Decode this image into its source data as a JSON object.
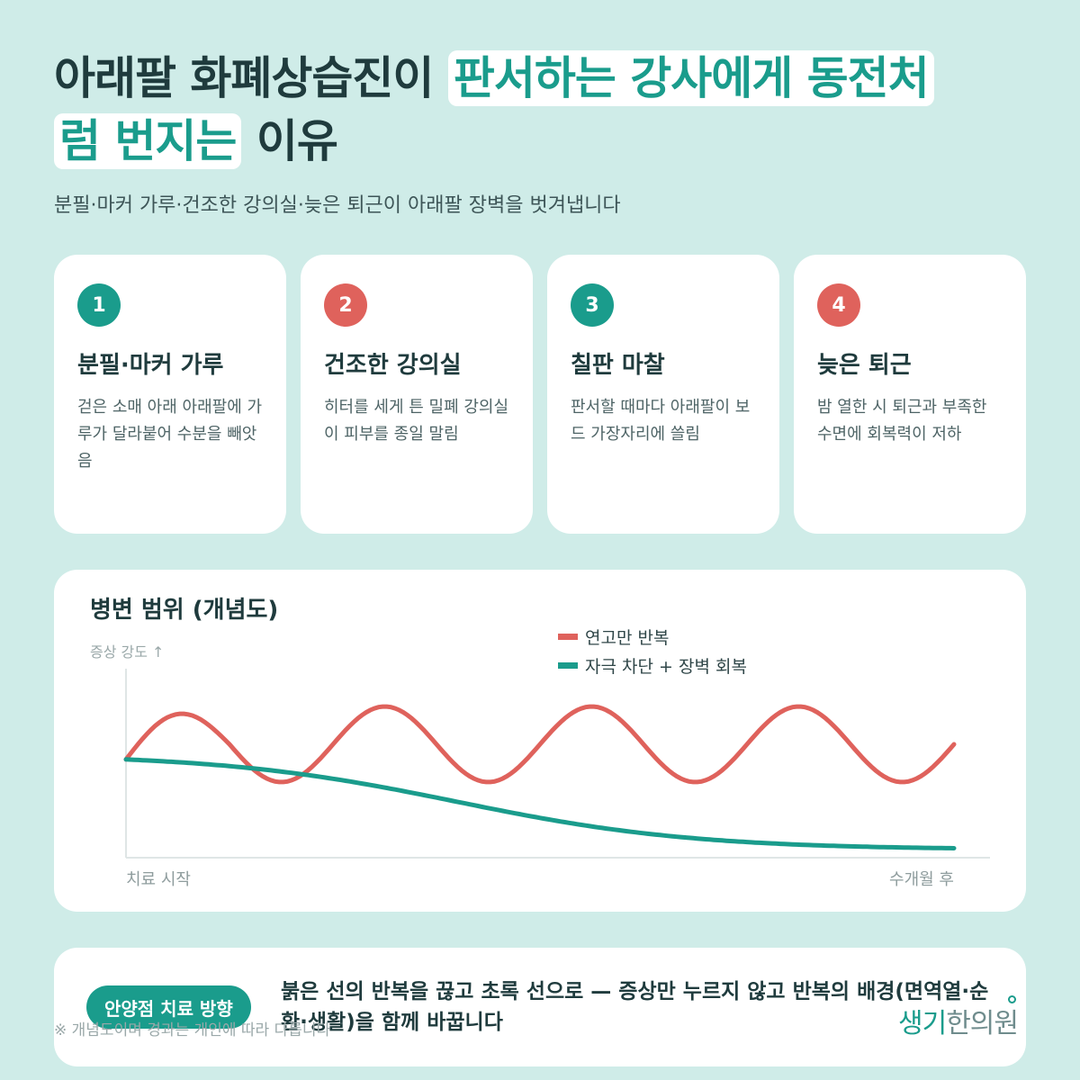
{
  "header": {
    "title_part1": "아래팔 화폐상습진이 ",
    "title_highlight1": "판서하는 강사에게 동전처",
    "title_highlight2": "럼 번지는",
    "title_part2": " 이유",
    "subtitle": "분필·마커 가루·건조한 강의실·늦은 퇴근이 아래팔 장벽을 벗겨냅니다"
  },
  "cards": [
    {
      "num": "1",
      "title": "분필·마커 가루",
      "desc": "걷은 소매 아래 아래팔에 가루가 달라붙어 수분을 빼앗음",
      "color": "#1a9c8c"
    },
    {
      "num": "2",
      "title": "건조한 강의실",
      "desc": "히터를 세게 튼 밀폐 강의실이 피부를 종일 말림",
      "color": "#df625c"
    },
    {
      "num": "3",
      "title": "칠판 마찰",
      "desc": "판서할 때마다 아래팔이 보드 가장자리에 쓸림",
      "color": "#1a9c8c"
    },
    {
      "num": "4",
      "title": "늦은 퇴근",
      "desc": "밤 열한 시 퇴근과 부족한 수면에 회복력이 저하",
      "color": "#df625c"
    }
  ],
  "chart_data": {
    "type": "line",
    "title": "병변 범위 (개념도)",
    "ylabel": "증상 강도 ↑",
    "x_start_label": "치료 시작",
    "x_end_label": "수개월 후",
    "legend_position": "top-right",
    "series": [
      {
        "name": "연고만 반복",
        "color": "#df625c",
        "kind": "oscillating",
        "cycles": 4,
        "baseline": 0.6,
        "amplitude": 0.2,
        "start": 0.52
      },
      {
        "name": "자극 차단 + 장벽 회복",
        "color": "#1a9c8c",
        "kind": "decaying",
        "start": 0.52,
        "end": 0.05
      }
    ]
  },
  "bottom": {
    "pill": "안양점 치료 방향",
    "text": "붉은 선의 반복을 끊고 초록 선으로 — 증상만 누르지 않고 반복의 배경(면역열·순환·생활)을 함께 바꿉니다",
    "footnote": "※ 개념도이며 경과는 개인에 따라 다릅니다",
    "logo_main": "생기",
    "logo_sub": "한의원"
  }
}
